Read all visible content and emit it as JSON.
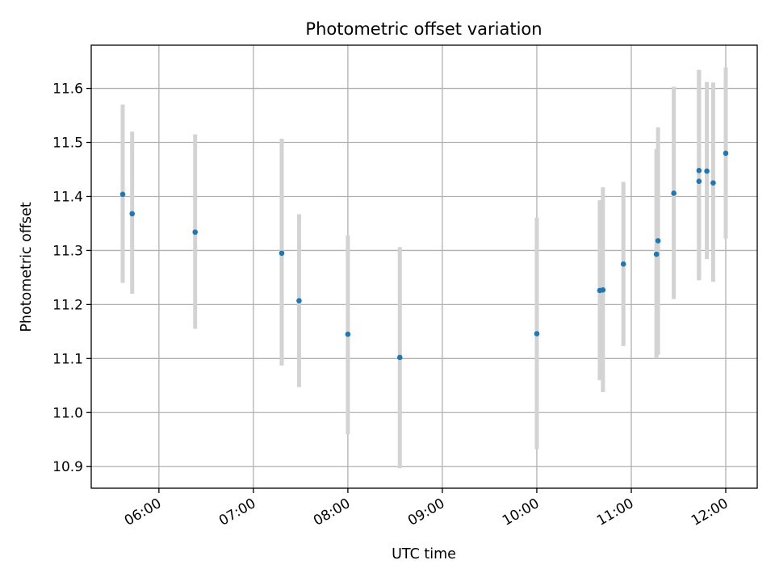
{
  "chart_data": {
    "type": "scatter",
    "title": "Photometric offset variation",
    "xlabel": "UTC time",
    "ylabel": "Photometric offset",
    "x_axis": "time",
    "xlim": [
      "05:17",
      "12:20"
    ],
    "ylim": [
      10.86,
      11.68
    ],
    "xticks": [
      "06:00",
      "07:00",
      "08:00",
      "09:00",
      "10:00",
      "11:00",
      "12:00"
    ],
    "yticks": [
      10.9,
      11.0,
      11.1,
      11.2,
      11.3,
      11.4,
      11.5,
      11.6
    ],
    "grid": true,
    "colors": {
      "marker": "#1f77b4",
      "errorbar": "#d3d3d3"
    },
    "points": [
      {
        "x": "05:37",
        "y": 11.404,
        "low": 11.24,
        "high": 11.57
      },
      {
        "x": "05:43",
        "y": 11.368,
        "low": 11.22,
        "high": 11.52
      },
      {
        "x": "06:23",
        "y": 11.334,
        "low": 11.155,
        "high": 11.515
      },
      {
        "x": "07:18",
        "y": 11.295,
        "low": 11.087,
        "high": 11.507
      },
      {
        "x": "07:29",
        "y": 11.207,
        "low": 11.047,
        "high": 11.367
      },
      {
        "x": "08:00",
        "y": 11.145,
        "low": 10.96,
        "high": 11.328
      },
      {
        "x": "08:33",
        "y": 11.102,
        "low": 10.897,
        "high": 11.306
      },
      {
        "x": "10:00",
        "y": 11.146,
        "low": 10.932,
        "high": 11.361
      },
      {
        "x": "10:40",
        "y": 11.226,
        "low": 11.06,
        "high": 11.393
      },
      {
        "x": "10:42",
        "y": 11.227,
        "low": 11.038,
        "high": 11.417
      },
      {
        "x": "10:55",
        "y": 11.275,
        "low": 11.123,
        "high": 11.427
      },
      {
        "x": "11:16",
        "y": 11.293,
        "low": 11.1,
        "high": 11.488
      },
      {
        "x": "11:17",
        "y": 11.318,
        "low": 11.107,
        "high": 11.528
      },
      {
        "x": "11:27",
        "y": 11.406,
        "low": 11.21,
        "high": 11.603
      },
      {
        "x": "11:43",
        "y": 11.448,
        "low": 11.245,
        "high": 11.634
      },
      {
        "x": "11:43",
        "y": 11.428,
        "low": 11.245,
        "high": 11.634
      },
      {
        "x": "11:48",
        "y": 11.447,
        "low": 11.284,
        "high": 11.612
      },
      {
        "x": "11:52",
        "y": 11.425,
        "low": 11.242,
        "high": 11.611
      },
      {
        "x": "12:00",
        "y": 11.48,
        "low": 11.322,
        "high": 11.639
      }
    ]
  }
}
